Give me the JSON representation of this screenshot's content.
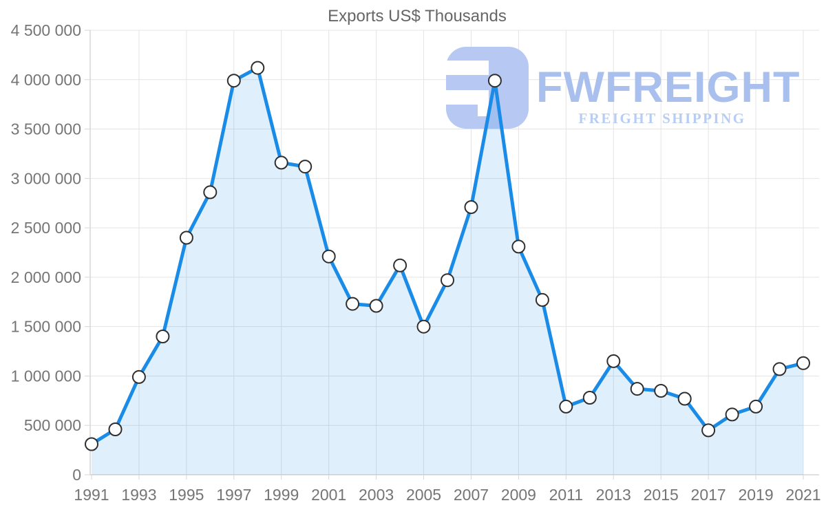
{
  "title": "Exports US$ Thousands",
  "watermark": {
    "brand": "FWFREIGHT",
    "tagline": "FREIGHT SHIPPING"
  },
  "colors": {
    "line": "#1a8ce8",
    "area_fill": "rgba(26,140,232,0.14)",
    "marker_fill": "#ffffff",
    "marker_stroke": "#2f2f2f",
    "grid": "#e4e4e4",
    "axis_line": "#d6d6d6",
    "axis_text": "#757575",
    "title_text": "#666666",
    "watermark_mark": "#b7c9f2",
    "watermark_brand": "#a9c0ee",
    "watermark_tagline": "#b8cdf3"
  },
  "chart_data": {
    "type": "area",
    "title": "Exports US$ Thousands",
    "xlabel": "",
    "ylabel": "",
    "x": [
      1991,
      1992,
      1993,
      1994,
      1995,
      1996,
      1997,
      1998,
      1999,
      2000,
      2001,
      2002,
      2003,
      2004,
      2005,
      2006,
      2007,
      2008,
      2009,
      2010,
      2011,
      2012,
      2013,
      2014,
      2015,
      2016,
      2017,
      2018,
      2019,
      2020,
      2021
    ],
    "values": [
      310000,
      460000,
      990000,
      1400000,
      2400000,
      2860000,
      3990000,
      4120000,
      3160000,
      3120000,
      2210000,
      1730000,
      1710000,
      2120000,
      1500000,
      1970000,
      2710000,
      3990000,
      2310000,
      1770000,
      690000,
      780000,
      1150000,
      870000,
      850000,
      770000,
      450000,
      610000,
      690000,
      1070000,
      1130000
    ],
    "ylim": [
      0,
      4500000
    ],
    "ytick_step": 500000,
    "xtick_step": 2,
    "grid": true,
    "legend": false,
    "marker": "circle"
  }
}
